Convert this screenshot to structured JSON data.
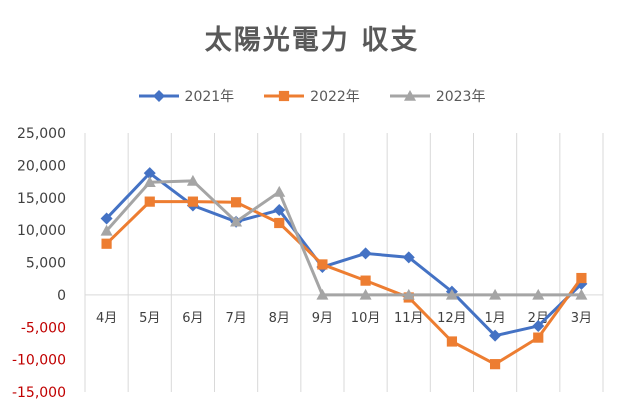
{
  "chart_data": {
    "type": "line",
    "title": "太陽光電力 収支",
    "xlabel": "",
    "ylabel": "",
    "categories": [
      "4月",
      "5月",
      "6月",
      "7月",
      "8月",
      "9月",
      "10月",
      "11月",
      "12月",
      "1月",
      "2月",
      "3月"
    ],
    "ylim": [
      -15000,
      25000
    ],
    "ytick_step": 5000,
    "ytick_labels": [
      "-15,000",
      "-10,000",
      "-5,000",
      "0",
      "5,000",
      "10,000",
      "15,000",
      "20,000",
      "25,000"
    ],
    "negative_tick_color": "#c00000",
    "positive_tick_color": "#404040",
    "grid": "vertical",
    "legend_position": "top",
    "series": [
      {
        "name": "2021年",
        "color": "#4472c4",
        "marker": "diamond",
        "values": [
          11800,
          18800,
          13800,
          11300,
          13100,
          4300,
          6400,
          5800,
          500,
          -6300,
          -4800,
          1700
        ]
      },
      {
        "name": "2022年",
        "color": "#ed7d31",
        "marker": "square",
        "values": [
          7900,
          14400,
          14400,
          14300,
          11100,
          4700,
          2200,
          -400,
          -7200,
          -10700,
          -6600,
          2600
        ]
      },
      {
        "name": "2023年",
        "color": "#a5a5a5",
        "marker": "triangle",
        "values": [
          9900,
          17400,
          17600,
          11300,
          15900,
          0,
          0,
          0,
          0,
          0,
          0,
          0
        ]
      }
    ]
  }
}
